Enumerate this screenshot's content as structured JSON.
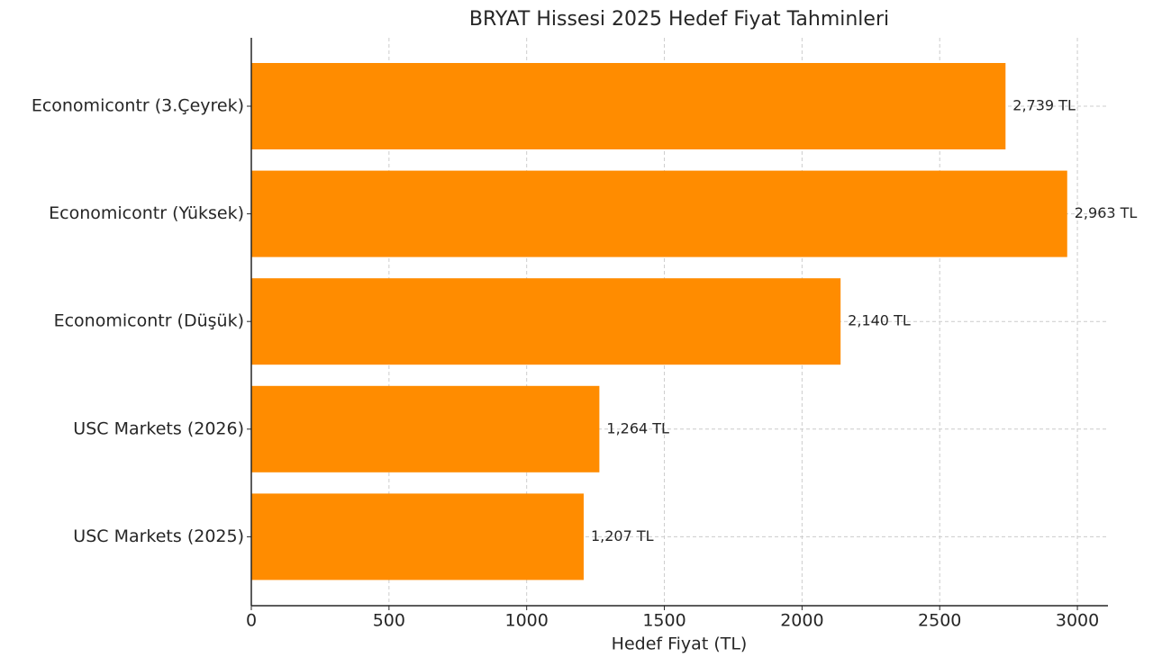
{
  "chart_data": {
    "type": "bar",
    "orientation": "horizontal",
    "title": "BRYAT Hissesi 2025 Hedef Fiyat Tahminleri",
    "x_label": "Hedef Fiyat (TL)",
    "categories": [
      "Economicontr (3.Çeyrek)",
      "Economicontr (Yüksek)",
      "Economicontr (Düşük)",
      "USC Markets (2026)",
      "USC Markets (2025)"
    ],
    "values": [
      2739,
      2963,
      2140,
      1264,
      1207
    ],
    "value_labels": [
      "2,739 TL",
      "2,963 TL",
      "2,140 TL",
      "1,264 TL",
      "1,207 TL"
    ],
    "color": "#ff8c00",
    "xlim": [
      0,
      3111
    ],
    "xticks": [
      0,
      500,
      1000,
      1500,
      2000,
      2500,
      3000
    ],
    "grid": true
  }
}
